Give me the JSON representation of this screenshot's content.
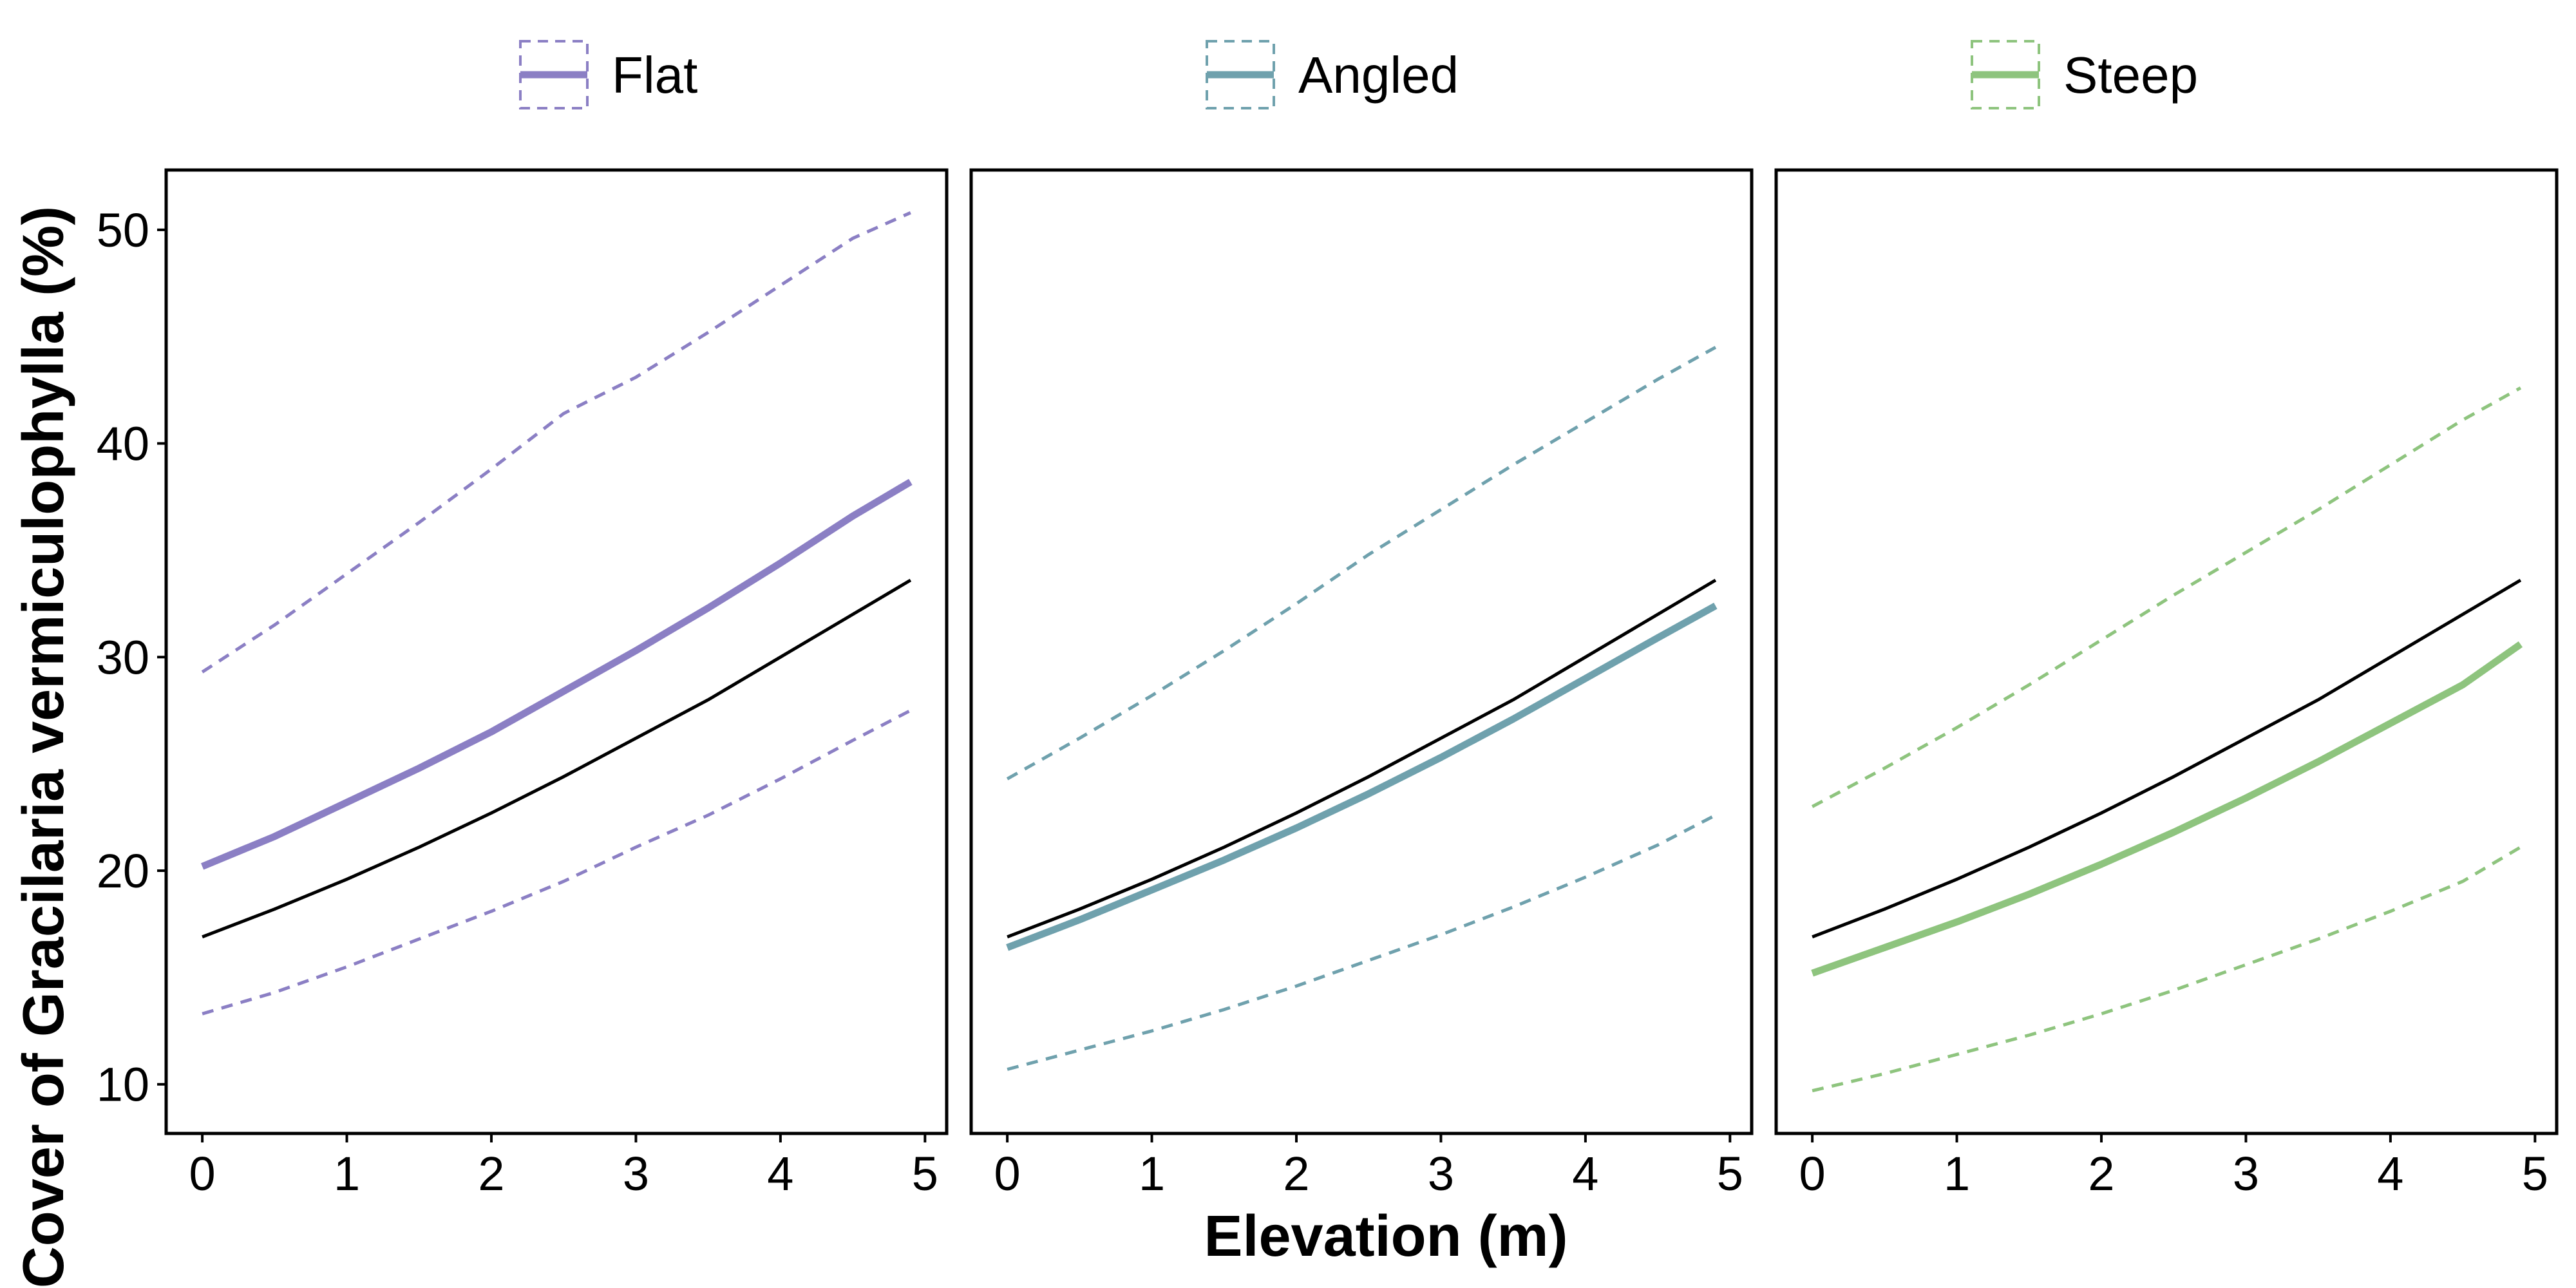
{
  "chart_data": {
    "type": "line",
    "xlabel": "Elevation (m)",
    "ylabel": "Cover of Gracilaria vermiculophylla (%)",
    "xlim": [
      -0.25,
      5.15
    ],
    "ylim": [
      7.7,
      52.8
    ],
    "x_ticks": [
      0,
      1,
      2,
      3,
      4,
      5
    ],
    "y_ticks": [
      10,
      20,
      30,
      40,
      50
    ],
    "grid": false,
    "legend_position": "top",
    "x": [
      0,
      0.5,
      1,
      1.5,
      2,
      2.5,
      3,
      3.5,
      4,
      4.5,
      4.9
    ],
    "overall": {
      "color": "#000000",
      "values": [
        16.9,
        18.2,
        19.6,
        21.1,
        22.7,
        24.4,
        26.2,
        28.0,
        30.0,
        32.0,
        33.6
      ]
    },
    "panels": [
      {
        "series": [
          {
            "name": "Flat",
            "color": "#8b7fc4",
            "fit": [
              20.2,
              21.6,
              23.2,
              24.8,
              26.5,
              28.4,
              30.3,
              32.3,
              34.4,
              36.6,
              38.2
            ],
            "upper": [
              29.3,
              31.5,
              33.9,
              36.3,
              38.8,
              41.4,
              43.1,
              45.2,
              47.4,
              49.6,
              50.8
            ],
            "lower": [
              13.3,
              14.3,
              15.5,
              16.8,
              18.1,
              19.5,
              21.1,
              22.6,
              24.3,
              26.1,
              27.5
            ]
          }
        ]
      },
      {
        "series": [
          {
            "name": "Angled",
            "color": "#6fa1ad",
            "fit": [
              16.4,
              17.7,
              19.1,
              20.5,
              22.0,
              23.6,
              25.3,
              27.1,
              29.0,
              30.9,
              32.4
            ],
            "upper": [
              24.3,
              26.2,
              28.2,
              30.3,
              32.5,
              34.8,
              36.9,
              39.0,
              41.0,
              43.0,
              44.5
            ],
            "lower": [
              10.7,
              11.6,
              12.5,
              13.5,
              14.6,
              15.8,
              17.0,
              18.3,
              19.7,
              21.2,
              22.6
            ]
          }
        ]
      },
      {
        "series": [
          {
            "name": "Steep",
            "color": "#8ec47e",
            "fit": [
              15.2,
              16.4,
              17.6,
              18.9,
              20.3,
              21.8,
              23.4,
              25.1,
              26.9,
              28.7,
              30.6
            ],
            "upper": [
              23.0,
              24.8,
              26.7,
              28.7,
              30.8,
              32.9,
              34.9,
              36.9,
              39.0,
              41.1,
              42.6
            ],
            "lower": [
              9.7,
              10.5,
              11.4,
              12.3,
              13.3,
              14.4,
              15.6,
              16.8,
              18.1,
              19.5,
              21.1
            ]
          }
        ]
      }
    ]
  }
}
